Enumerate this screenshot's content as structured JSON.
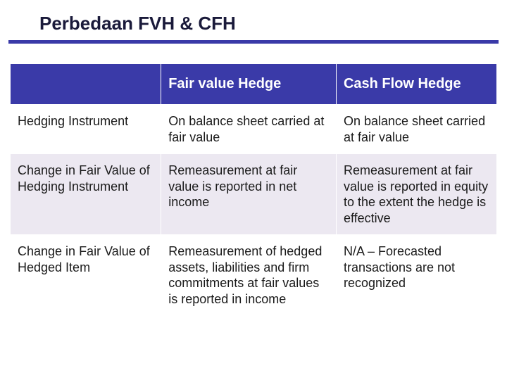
{
  "title": "Perbedaan FVH & CFH",
  "colors": {
    "header_bg": "#3a3aa8",
    "header_text": "#ffffff",
    "row_odd_bg": "#ffffff",
    "row_even_bg": "#ece8f1",
    "cell_text": "#1a1a1a",
    "underline": "#3a3aa8",
    "title_color": "#1a1a3a",
    "page_bg": "#ffffff"
  },
  "table": {
    "type": "table",
    "column_widths_pct": [
      31,
      36,
      33
    ],
    "columns": [
      "",
      "Fair value Hedge",
      "Cash Flow Hedge"
    ],
    "header_fontsize_pt": 20,
    "cell_fontsize_pt": 18,
    "rows": [
      {
        "label": "Hedging Instrument",
        "fvh": "On balance sheet carried at fair value",
        "cfh": "On balance sheet carried at fair value"
      },
      {
        "label": "Change in Fair Value of Hedging Instrument",
        "fvh": "Remeasurement at fair value is reported in net income",
        "cfh": "Remeasurement at fair value is reported in equity to the extent the hedge is effective"
      },
      {
        "label": "Change in Fair Value of Hedged Item",
        "fvh": "Remeasurement of hedged assets, liabilities and firm commitments at fair values is reported in income",
        "cfh": "N/A – Forecasted transactions are not recognized"
      }
    ]
  }
}
